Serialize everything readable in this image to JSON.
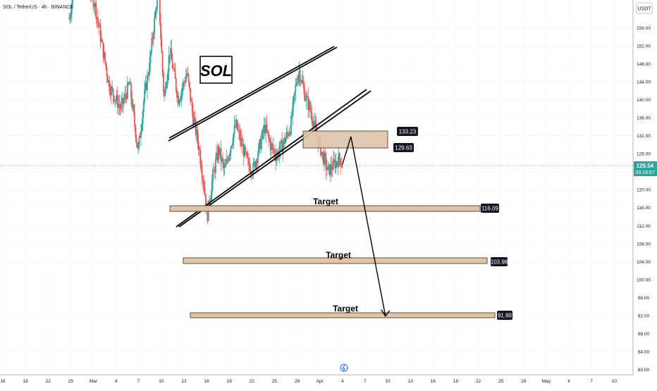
{
  "header": {
    "symbol": "SOL / TetherUS · 4h · BINANCE"
  },
  "currency": "USDT",
  "title_box": "SOL",
  "chart_data": {
    "type": "candlestick",
    "symbol": "SOL / TetherUS",
    "interval": "4h",
    "exchange": "BINANCE",
    "y_ticks": [
      80.0,
      84.0,
      88.0,
      92.0,
      96.0,
      100.0,
      104.0,
      108.0,
      112.0,
      116.0,
      120.0,
      124.0,
      128.0,
      132.0,
      136.0,
      140.0,
      144.0,
      148.0,
      152.0,
      156.0
    ],
    "x_ticks": [
      "16",
      "19",
      "22",
      "25",
      "Mar",
      "4",
      "7",
      "10",
      "13",
      "16",
      "19",
      "22",
      "25",
      "28",
      "Apr",
      "4",
      "7",
      "10",
      "13",
      "16",
      "19",
      "22",
      "25",
      "28",
      "May",
      "4",
      "7",
      "10"
    ],
    "current_price": "125.54",
    "countdown": "03:19:57",
    "resistance_zone": {
      "top": "133.23",
      "bottom": "129.63"
    },
    "targets": [
      {
        "label": "Target",
        "value": "116.09"
      },
      {
        "label": "Target",
        "value": "103.98"
      },
      {
        "label": "Target",
        "value": "91.89"
      }
    ],
    "price_path": [
      {
        "x": 0,
        "y": 158.0
      },
      {
        "x": 2,
        "y": 166.0
      },
      {
        "x": 5,
        "y": 170.0
      },
      {
        "x": 9,
        "y": 161.0
      },
      {
        "x": 14,
        "y": 143.0
      },
      {
        "x": 18,
        "y": 138.0
      },
      {
        "x": 21,
        "y": 143.5
      },
      {
        "x": 24,
        "y": 128.5
      },
      {
        "x": 26,
        "y": 140.0
      },
      {
        "x": 28,
        "y": 148.0
      },
      {
        "x": 31,
        "y": 165.0
      },
      {
        "x": 33,
        "y": 140.0
      },
      {
        "x": 35,
        "y": 151.0
      },
      {
        "x": 38,
        "y": 140.0
      },
      {
        "x": 41,
        "y": 146.0
      },
      {
        "x": 43,
        "y": 136.5
      },
      {
        "x": 45,
        "y": 130.0
      },
      {
        "x": 47,
        "y": 120.5
      },
      {
        "x": 48,
        "y": 114.0
      },
      {
        "x": 50,
        "y": 123.0
      },
      {
        "x": 52,
        "y": 129.0
      },
      {
        "x": 54,
        "y": 124.0
      },
      {
        "x": 57,
        "y": 132.0
      },
      {
        "x": 58,
        "y": 134.5
      },
      {
        "x": 60,
        "y": 130.0
      },
      {
        "x": 62,
        "y": 126.0
      },
      {
        "x": 64,
        "y": 124.5
      },
      {
        "x": 66,
        "y": 129.0
      },
      {
        "x": 68,
        "y": 134.0
      },
      {
        "x": 70,
        "y": 130.0
      },
      {
        "x": 72,
        "y": 127.5
      },
      {
        "x": 75,
        "y": 131.0
      },
      {
        "x": 77,
        "y": 134.0
      },
      {
        "x": 79,
        "y": 144.0
      },
      {
        "x": 80,
        "y": 146.5
      },
      {
        "x": 82,
        "y": 141.0
      },
      {
        "x": 84,
        "y": 137.5
      },
      {
        "x": 86,
        "y": 132.0
      },
      {
        "x": 88,
        "y": 128.0
      },
      {
        "x": 90,
        "y": 124.0
      },
      {
        "x": 92,
        "y": 125.5
      },
      {
        "x": 94,
        "y": 127.0
      },
      {
        "x": 95,
        "y": 125.5
      }
    ],
    "projection": [
      {
        "x": 95,
        "y": 125.54
      },
      {
        "x": 98,
        "y": 131.8
      },
      {
        "x": 110,
        "y": 91.89
      }
    ]
  }
}
